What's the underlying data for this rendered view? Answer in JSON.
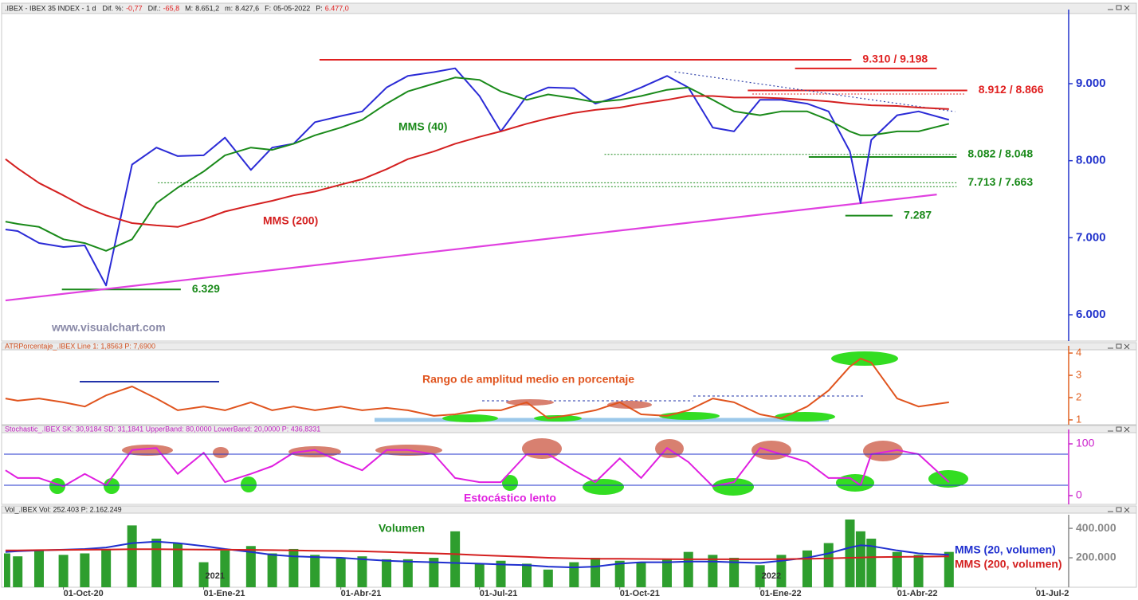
{
  "chart_data": {
    "type": "line",
    "header": {
      "title": ".IBEX - IBEX 35 INDEX - 1 d",
      "fields": [
        {
          "label": "Dif. %:",
          "value": "-0,77",
          "color": "#e02020"
        },
        {
          "label": "Dif.:",
          "value": "-65,8",
          "color": "#e02020"
        },
        {
          "label": "M:",
          "value": "8.651,2",
          "color": "#222222"
        },
        {
          "label": "m:",
          "value": "8.427,6",
          "color": "#222222"
        },
        {
          "label": "F:",
          "value": "05-05-2022",
          "color": "#222222"
        },
        {
          "label": "P:",
          "value": "6.477,0",
          "color": "#e02020"
        }
      ]
    },
    "x": [
      "2020-08-24",
      "2020-09-01",
      "2020-09-15",
      "2020-10-01",
      "2020-10-15",
      "2020-10-29",
      "2020-11-15",
      "2020-12-01",
      "2020-12-15",
      "2021-01-01",
      "2021-01-15",
      "2021-02-01",
      "2021-02-15",
      "2021-03-01",
      "2021-03-15",
      "2021-04-01",
      "2021-04-15",
      "2021-05-01",
      "2021-05-15",
      "2021-06-01",
      "2021-06-15",
      "2021-07-01",
      "2021-07-15",
      "2021-08-01",
      "2021-08-15",
      "2021-09-01",
      "2021-09-15",
      "2021-10-01",
      "2021-10-15",
      "2021-11-01",
      "2021-11-15",
      "2021-12-01",
      "2021-12-15",
      "2022-01-01",
      "2022-01-15",
      "2022-02-01",
      "2022-02-15",
      "2022-03-01",
      "2022-03-08",
      "2022-03-15",
      "2022-04-01",
      "2022-04-15",
      "2022-05-05"
    ],
    "xlim": [
      "2020-08-23",
      "2022-07-22"
    ],
    "xticks": [
      {
        "value": "2020-10-01",
        "label": "01-Oct-20"
      },
      {
        "value": "2021-01-01",
        "label": "01-Ene-21"
      },
      {
        "value": "2021-04-01",
        "label": "01-Abr-21"
      },
      {
        "value": "2021-07-01",
        "label": "01-Jul-21"
      },
      {
        "value": "2021-10-01",
        "label": "01-Oct-21"
      },
      {
        "value": "2022-01-01",
        "label": "01-Ene-22"
      },
      {
        "value": "2022-04-01",
        "label": "01-Abr-22"
      },
      {
        "value": "2022-07-01",
        "label": "01-Jul-2"
      }
    ],
    "panels": [
      {
        "axis_color": "#2233cc",
        "ylim": [
          5690,
          9900
        ],
        "yticks": [
          {
            "value": 6000,
            "label": "6.000"
          },
          {
            "value": 7000,
            "label": "7.000"
          },
          {
            "value": 8000,
            "label": "8.000"
          },
          {
            "value": 9000,
            "label": "9.000"
          }
        ],
        "series": [
          {
            "type": "line",
            "color": "#2b2bd6",
            "values": [
              7107,
              7086,
              6931,
              6880,
              6900,
              6380,
              7950,
              8170,
              8060,
              8070,
              8300,
              7880,
              8170,
              8220,
              8500,
              8580,
              8640,
              8950,
              9100,
              9150,
              9200,
              8840,
              8380,
              8840,
              8950,
              8940,
              8740,
              8840,
              8950,
              9100,
              8950,
              8430,
              8380,
              8790,
              8790,
              8740,
              8640,
              8120,
              7450,
              8270,
              8590,
              8640,
              8530
            ]
          },
          {
            "type": "line",
            "name": "MMS (40)",
            "color": "#1a8a1a",
            "values": [
              7210,
              7180,
              7140,
              6980,
              6930,
              6830,
              6980,
              7450,
              7650,
              7860,
              8070,
              8170,
              8140,
              8220,
              8330,
              8430,
              8530,
              8740,
              8900,
              9000,
              9080,
              9050,
              8900,
              8790,
              8860,
              8810,
              8760,
              8790,
              8840,
              8920,
              8950,
              8790,
              8640,
              8590,
              8640,
              8640,
              8530,
              8380,
              8330,
              8330,
              8380,
              8380,
              8480
            ]
          },
          {
            "type": "line",
            "name": "MMS (200)",
            "color": "#d42020",
            "values": [
              8020,
              7900,
              7710,
              7550,
              7400,
              7290,
              7190,
              7160,
              7140,
              7240,
              7340,
              7420,
              7480,
              7550,
              7600,
              7690,
              7760,
              7890,
              8020,
              8120,
              8220,
              8310,
              8380,
              8480,
              8550,
              8620,
              8660,
              8690,
              8740,
              8790,
              8840,
              8840,
              8820,
              8820,
              8810,
              8790,
              8770,
              8740,
              8730,
              8720,
              8710,
              8690,
              8670
            ]
          }
        ],
        "levels": [
          {
            "label": "9.310 / 9.198",
            "color": "#e02020",
            "lines": [
              {
                "value": 9310,
                "x": [
                  "2021-03-18",
                  "2022-03-02"
                ],
                "style": "solid"
              },
              {
                "value": 9198,
                "x": [
                  "2022-01-24",
                  "2022-04-27"
                ],
                "style": "solid"
              }
            ]
          },
          {
            "label": "8.912 / 8.866",
            "color": "#e02020",
            "lines": [
              {
                "value": 8912,
                "x": [
                  "2021-12-24",
                  "2022-05-17"
                ],
                "style": "solid"
              },
              {
                "value": 8866,
                "x": [
                  "2021-12-27",
                  "2022-05-15"
                ],
                "style": "dotted"
              }
            ]
          },
          {
            "label": "8.082 / 8.048",
            "color": "#1a8a1a",
            "lines": [
              {
                "value": 8082,
                "x": [
                  "2021-09-21",
                  "2022-05-10"
                ],
                "style": "dotted"
              },
              {
                "value": 8048,
                "x": [
                  "2022-02-02",
                  "2022-05-10"
                ],
                "style": "solid"
              }
            ]
          },
          {
            "label": "7.713 / 7.663",
            "color": "#1a8a1a",
            "lines": [
              {
                "value": 7713,
                "x": [
                  "2020-12-02",
                  "2022-05-10"
                ],
                "style": "dotted"
              },
              {
                "value": 7663,
                "x": [
                  "2020-12-17",
                  "2022-05-10"
                ],
                "style": "dotted"
              }
            ]
          },
          {
            "label": "7.287",
            "color": "#1a8a1a",
            "lines": [
              {
                "value": 7287,
                "x": [
                  "2022-02-26",
                  "2022-03-29"
                ],
                "style": "solid"
              }
            ]
          },
          {
            "label": "6.329",
            "color": "#1a8a1a",
            "lines": [
              {
                "value": 6329,
                "x": [
                  "2020-09-30",
                  "2020-12-17"
                ],
                "style": "solid"
              }
            ]
          }
        ],
        "trendlines": [
          {
            "color": "#e040e0",
            "style": "solid",
            "x": [
              "2020-08-24",
              "2022-04-27"
            ],
            "values": [
              6186,
              7561
            ]
          },
          {
            "color": "#3344aa",
            "style": "dotted",
            "x": [
              "2021-11-06",
              "2022-05-09"
            ],
            "values": [
              9154,
              8637
            ]
          }
        ],
        "annotations": [
          {
            "text": "www.visualchart.com",
            "color": "#8a8aa8"
          }
        ]
      },
      {
        "header": "ATRPorcentaje_.IBEX Line 1: 1,8563 P: 7,6900",
        "header_color": "#d05020",
        "axis_color": "#e06020",
        "ylim": [
          0.82,
          4.11
        ],
        "yticks": [
          1,
          2,
          3,
          4
        ],
        "series": [
          {
            "type": "line",
            "color": "#e0541e",
            "values": [
              1.96,
              1.86,
              1.96,
              1.79,
              1.6,
              2.1,
              2.5,
              1.96,
              1.43,
              1.6,
              1.43,
              1.79,
              1.43,
              1.6,
              1.43,
              1.6,
              1.43,
              1.54,
              1.43,
              1.18,
              1.25,
              1.43,
              1.43,
              1.79,
              1.07,
              1.25,
              1.43,
              1.79,
              1.25,
              1.18,
              1.43,
              1.96,
              1.79,
              1.25,
              1.07,
              1.6,
              2.32,
              3.39,
              3.75,
              3.57,
              1.96,
              1.6,
              1.79
            ]
          }
        ],
        "annotations": [
          {
            "text": "Rango de amplitud medio en porcentaje",
            "color": "#e0541e"
          }
        ]
      },
      {
        "header": "Stochastic_.IBEX SK: 30,9184 SD: 31,1841 UpperBand: 80,0000 LowerBand: 20,0000 P: 436,8331",
        "header_color": "#c020c0",
        "axis_color": "#cc22cc",
        "ylim": [
          -15.4,
          118.5
        ],
        "yticks": [
          0,
          100
        ],
        "hlines": [
          80,
          20
        ],
        "hline_color": "#2233cc",
        "series": [
          {
            "type": "line",
            "color": "#e020e0",
            "values": [
              49,
              34,
              34,
              18,
              42,
              20,
              88,
              92,
              42,
              83,
              26,
              42,
              57,
              83,
              88,
              65,
              49,
              88,
              88,
              80,
              34,
              26,
              26,
              80,
              80,
              49,
              26,
              72,
              34,
              92,
              65,
              18,
              26,
              92,
              80,
              65,
              34,
              34,
              20,
              80,
              88,
              80,
              26
            ]
          }
        ],
        "annotations": [
          {
            "text": "Estocástico lento",
            "color": "#e020e0"
          }
        ]
      },
      {
        "header": "Vol_.IBEX Vol: 252.403 P: 2.162.249",
        "header_color": "#222222",
        "axis_color": "#888888",
        "ylim": [
          0,
          460000
        ],
        "yticks": [
          {
            "value": 200000,
            "label": "200.000"
          },
          {
            "value": 400000,
            "label": "400.000"
          }
        ],
        "series": [
          {
            "type": "bar",
            "color": "#2e9e2e",
            "values": [
              230000,
              210000,
              250000,
              220000,
              230000,
              260000,
              420000,
              330000,
              300000,
              170000,
              250000,
              280000,
              230000,
              260000,
              220000,
              200000,
              210000,
              190000,
              190000,
              200000,
              380000,
              160000,
              180000,
              160000,
              120000,
              170000,
              200000,
              180000,
              170000,
              190000,
              240000,
              220000,
              200000,
              150000,
              220000,
              250000,
              300000,
              460000,
              380000,
              330000,
              240000,
              220000,
              240000
            ]
          },
          {
            "type": "line",
            "name": "MMS (20, volumen)",
            "color": "#1f2fcf",
            "values": [
              240000,
              245000,
              250000,
              255000,
              260000,
              270000,
              300000,
              310000,
              300000,
              280000,
              260000,
              240000,
              220000,
              210000,
              205000,
              200000,
              190000,
              180000,
              175000,
              170000,
              165000,
              160000,
              155000,
              150000,
              140000,
              135000,
              140000,
              160000,
              170000,
              170000,
              175000,
              175000,
              170000,
              165000,
              180000,
              200000,
              230000,
              270000,
              285000,
              280000,
              250000,
              230000,
              220000
            ]
          },
          {
            "type": "line",
            "name": "MMS (200, volumen)",
            "color": "#d42020",
            "values": [
              250000,
              250000,
              252000,
              254000,
              255000,
              256000,
              258000,
              258000,
              257000,
              256000,
              255000,
              254000,
              252000,
              250000,
              248000,
              246000,
              244000,
              240000,
              235000,
              230000,
              225000,
              218000,
              212000,
              206000,
              200000,
              196000,
              194000,
              193000,
              192000,
              191000,
              190000,
              190000,
              190000,
              190000,
              191000,
              193000,
              196000,
              200000,
              202000,
              204000,
              206000,
              208000,
              210000
            ]
          }
        ],
        "annotations": [
          {
            "text": "Volumen",
            "color": "#1a8a1a"
          }
        ],
        "year_labels": [
          {
            "text": "2021",
            "x": "2021-01-01"
          },
          {
            "text": "2022",
            "x": "2022-01-01"
          }
        ]
      }
    ]
  }
}
